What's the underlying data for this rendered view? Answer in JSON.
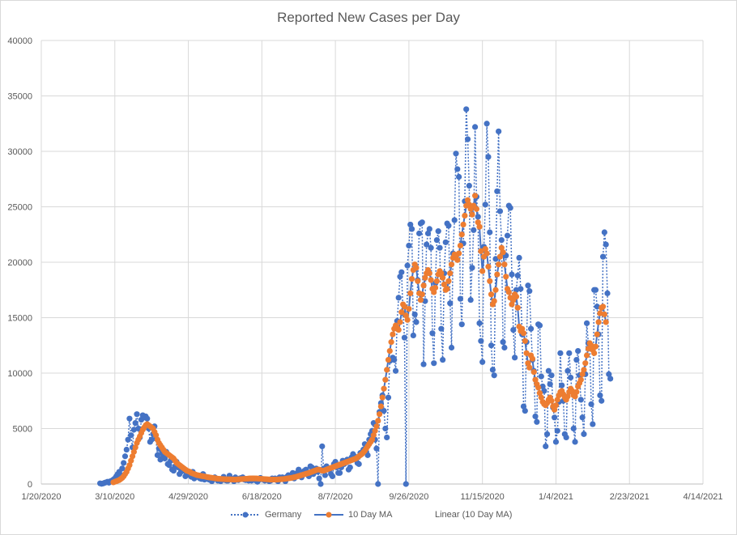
{
  "chart_data": {
    "type": "line",
    "title": "Reported New Cases per Day",
    "xlabel": "",
    "ylabel": "",
    "ylim": [
      0,
      40000
    ],
    "yticks": [
      "0",
      "5000",
      "10000",
      "15000",
      "20000",
      "25000",
      "30000",
      "35000",
      "40000"
    ],
    "xticks": [
      "1/20/2020",
      "3/10/2020",
      "4/29/2020",
      "6/18/2020",
      "8/7/2020",
      "9/26/2020",
      "11/15/2020",
      "1/4/2021",
      "2/23/2021",
      "4/14/2021"
    ],
    "x_start": "2020-01-20",
    "x_end_day": 450,
    "grid": true,
    "legend_position": "bottom",
    "series": [
      {
        "name": "Germany",
        "color": "#4472c4",
        "style": "dotted-with-markers",
        "start_day": 40,
        "values": [
          60,
          20,
          50,
          100,
          150,
          200,
          120,
          250,
          300,
          400,
          500,
          700,
          900,
          1100,
          800,
          1400,
          1900,
          2500,
          3100,
          4000,
          5900,
          4400,
          3300,
          4900,
          5500,
          6300,
          5000,
          4200,
          5800,
          6200,
          6000,
          6100,
          5900,
          5000,
          3800,
          4000,
          4500,
          5200,
          4100,
          2600,
          3200,
          2200,
          2800,
          2500,
          2300,
          2900,
          1800,
          1700,
          2100,
          1300,
          1200,
          1600,
          2000,
          1500,
          900,
          1100,
          1300,
          1200,
          700,
          900,
          1000,
          800,
          650,
          1100,
          500,
          700,
          750,
          600,
          500,
          450,
          900,
          400,
          550,
          500,
          400,
          350,
          250,
          500,
          600,
          500,
          300,
          350,
          250,
          400,
          650,
          350,
          300,
          300,
          750,
          500,
          450,
          250,
          600,
          400,
          350,
          500,
          550,
          600,
          400,
          350,
          450,
          300,
          350,
          300,
          500,
          400,
          300,
          200,
          350,
          550,
          450,
          400,
          300,
          400,
          350,
          250,
          300,
          500,
          450,
          500,
          350,
          250,
          600,
          500,
          600,
          400,
          250,
          650,
          800,
          750,
          800,
          1000,
          500,
          900,
          1000,
          1300,
          800,
          600,
          1100,
          1200,
          1300,
          900,
          700,
          1600,
          1500,
          900,
          1200,
          1400,
          1100,
          500,
          0,
          3400,
          1400,
          800,
          1600,
          1300,
          1300,
          900,
          700,
          1800,
          2000,
          1500,
          1000,
          1000,
          1500,
          2100,
          1800,
          2000,
          2200,
          1300,
          1500,
          2400,
          2700,
          2500,
          2200,
          1900,
          1800,
          2800,
          2800,
          3100,
          3600,
          2900,
          2600,
          4000,
          4500,
          4800,
          5500,
          4000,
          3200,
          0,
          6500,
          7300,
          8000,
          6600,
          5000,
          4200,
          7800,
          11100,
          11200,
          11400,
          11200,
          10200,
          14700,
          16800,
          18700,
          19100,
          15400,
          13200,
          0,
          19700,
          21500,
          23400,
          23000,
          13400,
          15300,
          14600,
          18400,
          22600,
          23500,
          23600,
          10800,
          16500,
          21600,
          22600,
          23000,
          21300,
          13600,
          10900,
          18100,
          22000,
          22800,
          21300,
          14000,
          11200,
          19000,
          21800,
          23500,
          23300,
          16300,
          12300,
          20800,
          23800,
          29800,
          28400,
          27700,
          16700,
          14400,
          21700,
          25500,
          33800,
          31100,
          26900,
          16600,
          19500,
          22900,
          32200,
          25900,
          24100,
          14500,
          12900,
          11000,
          21400,
          25200,
          32500,
          29500,
          22700,
          12500,
          10300,
          9800,
          20300,
          26400,
          31800,
          24600,
          22000,
          12800,
          12300,
          20600,
          22400,
          25100,
          24900,
          18900,
          13900,
          11400,
          17500,
          18800,
          20400,
          17600,
          13500,
          7000,
          6600,
          12800,
          17900,
          17400,
          14000,
          11200,
          10200,
          6100,
          5600,
          14400,
          14300,
          9700,
          8800,
          8400,
          3400,
          4500,
          10200,
          9000,
          9800,
          6900,
          6000,
          3800,
          4800,
          7400,
          11800,
          8900,
          7500,
          4500,
          4200,
          10200,
          11800,
          9600,
          8300,
          5000,
          3800,
          11200,
          12000,
          9800,
          7600,
          6000,
          4500,
          9900,
          14500,
          12700,
          12600,
          7200,
          5400,
          17500,
          17500,
          16000,
          13500,
          8000,
          7500,
          20500,
          22700,
          21600,
          17200,
          9900,
          9500
        ]
      },
      {
        "name": "10 Day MA",
        "color": "#ed7d31",
        "line_color": "#4472c4",
        "style": "solid-with-markers",
        "start_day": 49,
        "values": [
          150,
          200,
          250,
          300,
          350,
          450,
          550,
          700,
          900,
          1100,
          1400,
          1700,
          2100,
          2500,
          2900,
          3300,
          3700,
          4000,
          4300,
          4600,
          4900,
          5100,
          5300,
          5400,
          5300,
          5200,
          5100,
          5000,
          4700,
          4400,
          4000,
          3700,
          3500,
          3300,
          3100,
          2900,
          2800,
          2700,
          2600,
          2500,
          2400,
          2300,
          2100,
          1900,
          1800,
          1700,
          1600,
          1500,
          1400,
          1300,
          1200,
          1150,
          1100,
          1000,
          950,
          900,
          850,
          800,
          780,
          750,
          720,
          700,
          680,
          650,
          620,
          600,
          580,
          560,
          540,
          520,
          500,
          480,
          470,
          460,
          450,
          440,
          430,
          420,
          420,
          420,
          410,
          410,
          400,
          400,
          410,
          420,
          430,
          440,
          450,
          460,
          470,
          480,
          490,
          500,
          500,
          500,
          500,
          500,
          490,
          480,
          470,
          460,
          450,
          440,
          430,
          420,
          410,
          400,
          400,
          400,
          400,
          400,
          410,
          420,
          430,
          440,
          450,
          470,
          490,
          510,
          530,
          550,
          580,
          610,
          640,
          680,
          720,
          760,
          800,
          840,
          880,
          920,
          960,
          1000,
          1050,
          1100,
          1150,
          1200,
          1250,
          1300,
          1300,
          1250,
          1200,
          1200,
          1250,
          1300,
          1350,
          1400,
          1450,
          1500,
          1550,
          1600,
          1650,
          1700,
          1750,
          1800,
          1850,
          1900,
          1950,
          2000,
          2050,
          2100,
          2150,
          2200,
          2250,
          2300,
          2400,
          2500,
          2600,
          2700,
          2850,
          3000,
          3200,
          3400,
          3600,
          3800,
          4000,
          4400,
          4800,
          5200,
          5700,
          6300,
          7000,
          7800,
          8600,
          9400,
          10300,
          11200,
          12000,
          12800,
          13500,
          14000,
          14300,
          14100,
          13900,
          14600,
          15500,
          16200,
          16000,
          15200,
          14800,
          15800,
          17200,
          18500,
          19300,
          19800,
          19500,
          18300,
          17200,
          16600,
          17100,
          17900,
          18600,
          19000,
          19300,
          19000,
          18400,
          17600,
          17300,
          17700,
          18300,
          18900,
          19200,
          19000,
          18600,
          18000,
          17500,
          17600,
          18300,
          19000,
          19800,
          20400,
          20700,
          20600,
          20200,
          20800,
          21500,
          22500,
          23400,
          24200,
          25100,
          25600,
          25200,
          24800,
          24300,
          25100,
          26000,
          24800,
          23600,
          23200,
          21000,
          19200,
          20500,
          21200,
          20800,
          19600,
          18300,
          17100,
          16200,
          16500,
          17500,
          18900,
          19800,
          20500,
          21300,
          20900,
          19800,
          18700,
          17600,
          17300,
          16800,
          16200,
          16600,
          17100,
          16900,
          15900,
          14200,
          13800,
          14000,
          13600,
          12900,
          11800,
          10900,
          10500,
          11600,
          11300,
          10100,
          9400,
          9000,
          8700,
          8200,
          7800,
          7400,
          7200,
          7100,
          7300,
          7600,
          7800,
          7500,
          7000,
          6700,
          7100,
          7600,
          8000,
          8300,
          8400,
          8100,
          7800,
          7600,
          7900,
          8300,
          8600,
          8400,
          8000,
          7900,
          8300,
          8800,
          9100,
          9400,
          9900,
          10300,
          10900,
          11600,
          12200,
          12700,
          12500,
          12100,
          11800,
          12400,
          13500,
          14600,
          15400,
          15900,
          16000,
          15300,
          14600
        ]
      },
      {
        "name": "Linear (10 Day MA)",
        "color": "#4472c4",
        "style": "legend-only"
      }
    ]
  }
}
